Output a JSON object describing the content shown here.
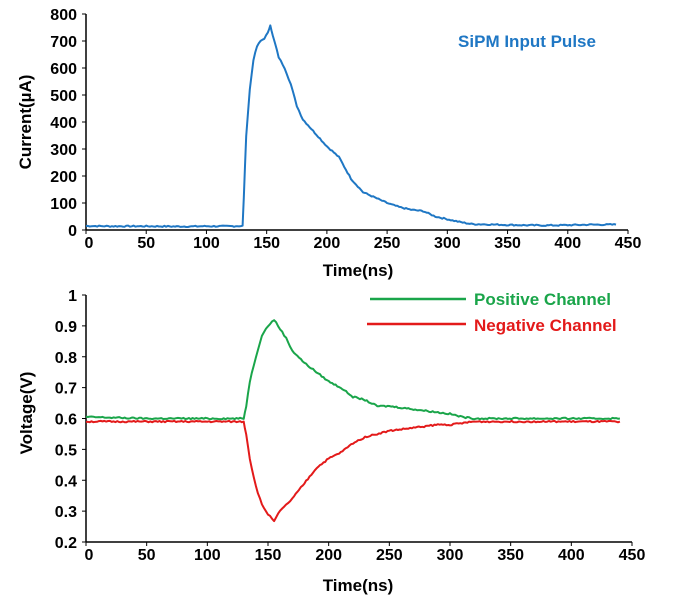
{
  "chart_data": [
    {
      "type": "line",
      "title": "",
      "xlabel": "Time(ns)",
      "ylabel": "Current(µA)",
      "xlim": [
        0,
        450
      ],
      "ylim": [
        0,
        800
      ],
      "x_ticks": [
        "0",
        "50",
        "100",
        "150",
        "200",
        "250",
        "300",
        "350",
        "400",
        "450"
      ],
      "y_ticks": [
        "0",
        "100",
        "200",
        "300",
        "400",
        "500",
        "600",
        "700",
        "800"
      ],
      "grid": false,
      "legend_position": "top-right",
      "series": [
        {
          "name": "SiPM Input Pulse",
          "color": "#1f77c4",
          "x": [
            0,
            20,
            50,
            80,
            100,
            120,
            130,
            131,
            133,
            136,
            139,
            142,
            145,
            148,
            151,
            153,
            155,
            157,
            160,
            165,
            170,
            175,
            180,
            190,
            200,
            210,
            220,
            230,
            240,
            250,
            260,
            270,
            280,
            290,
            300,
            310,
            320,
            340,
            360,
            380,
            400,
            420,
            440
          ],
          "y": [
            15,
            14,
            14,
            13,
            14,
            14,
            15,
            120,
            350,
            520,
            630,
            680,
            700,
            710,
            730,
            760,
            720,
            690,
            640,
            600,
            540,
            460,
            410,
            360,
            310,
            270,
            190,
            140,
            120,
            100,
            85,
            75,
            70,
            50,
            40,
            30,
            22,
            20,
            18,
            17,
            18,
            20,
            20
          ]
        }
      ]
    },
    {
      "type": "line",
      "title": "",
      "xlabel": "Time(ns)",
      "ylabel": "Voltage(V)",
      "xlim": [
        0,
        450
      ],
      "ylim": [
        0.2,
        1
      ],
      "x_ticks": [
        "0",
        "50",
        "100",
        "150",
        "200",
        "250",
        "300",
        "350",
        "400",
        "450"
      ],
      "y_ticks": [
        "0.2",
        "0.3",
        "0.4",
        "0.5",
        "0.6",
        "0.7",
        "0.8",
        "0.9",
        "1"
      ],
      "grid": false,
      "legend_position": "top-right",
      "series": [
        {
          "name": "Positive Channel",
          "color": "#1aa54a",
          "x": [
            0,
            50,
            100,
            130,
            132,
            135,
            140,
            145,
            150,
            155,
            160,
            165,
            170,
            180,
            190,
            200,
            210,
            220,
            230,
            240,
            250,
            260,
            270,
            280,
            290,
            300,
            310,
            320,
            340,
            360,
            380,
            400,
            420,
            440
          ],
          "y": [
            0.605,
            0.6,
            0.6,
            0.6,
            0.64,
            0.72,
            0.8,
            0.87,
            0.9,
            0.92,
            0.89,
            0.86,
            0.82,
            0.78,
            0.75,
            0.72,
            0.7,
            0.67,
            0.66,
            0.64,
            0.64,
            0.635,
            0.63,
            0.625,
            0.62,
            0.615,
            0.605,
            0.6,
            0.6,
            0.6,
            0.6,
            0.6,
            0.6,
            0.6
          ]
        },
        {
          "name": "Negative Channel",
          "color": "#e31a1a",
          "x": [
            0,
            50,
            100,
            130,
            132,
            135,
            140,
            145,
            150,
            155,
            160,
            165,
            170,
            180,
            190,
            200,
            210,
            220,
            230,
            240,
            250,
            260,
            270,
            280,
            290,
            300,
            310,
            320,
            340,
            360,
            380,
            400,
            420,
            440
          ],
          "y": [
            0.59,
            0.59,
            0.59,
            0.59,
            0.55,
            0.47,
            0.38,
            0.32,
            0.29,
            0.27,
            0.3,
            0.32,
            0.34,
            0.39,
            0.44,
            0.47,
            0.49,
            0.52,
            0.54,
            0.55,
            0.56,
            0.565,
            0.57,
            0.575,
            0.58,
            0.58,
            0.585,
            0.59,
            0.59,
            0.59,
            0.59,
            0.59,
            0.59,
            0.59
          ]
        }
      ]
    }
  ]
}
